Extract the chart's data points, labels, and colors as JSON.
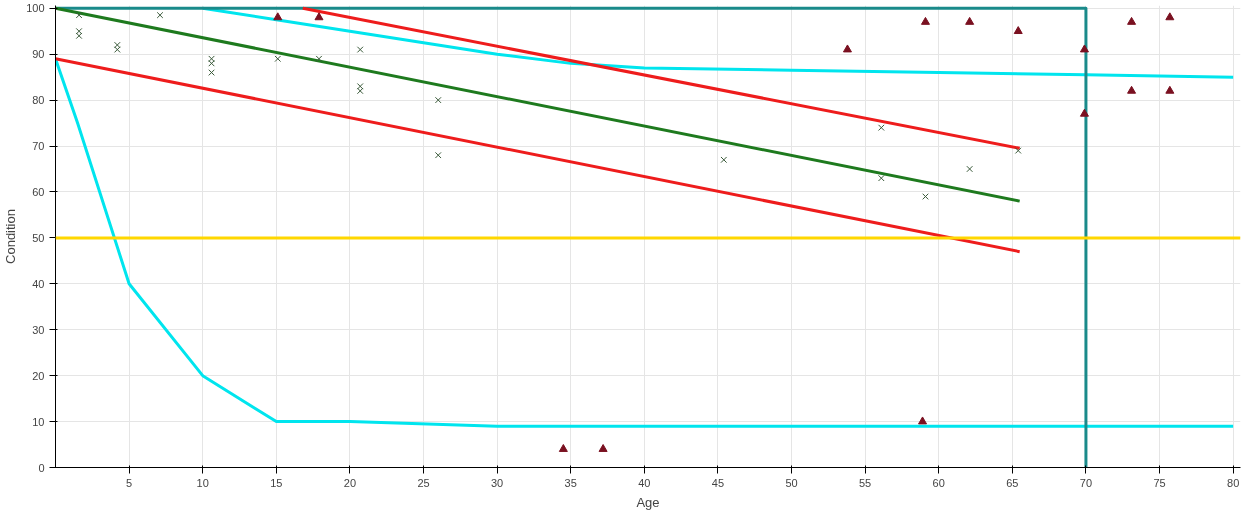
{
  "chart_data": {
    "type": "scatter",
    "xlabel": "Age",
    "ylabel": "Condition",
    "xlim": [
      0,
      80.5
    ],
    "ylim": [
      0,
      100.6
    ],
    "xticks": [
      5,
      10,
      15,
      20,
      25,
      30,
      35,
      40,
      45,
      50,
      55,
      60,
      65,
      70,
      75,
      80
    ],
    "yticks": [
      0,
      10,
      20,
      30,
      40,
      50,
      60,
      70,
      80,
      90,
      100
    ],
    "grid": true,
    "series": [
      {
        "type": "line",
        "color": "#00e5ee",
        "x": [
          0,
          1.5,
          5,
          10,
          15,
          20,
          30,
          80
        ],
        "values": [
          89,
          75,
          40,
          20,
          10,
          10,
          9,
          9
        ]
      },
      {
        "type": "line",
        "color": "#00e5ee",
        "x": [
          10,
          15,
          20,
          25,
          30,
          35,
          40,
          50,
          60,
          70,
          80
        ],
        "values": [
          100,
          97.5,
          95,
          92.5,
          90,
          88,
          87,
          86.5,
          86,
          85.5,
          85
        ]
      },
      {
        "type": "line",
        "color": "#1a8a8a",
        "x": [
          0,
          70,
          70
        ],
        "values": [
          100,
          100,
          0
        ]
      },
      {
        "type": "line",
        "color": "#ee1c1c",
        "x": [
          16.8,
          65.5
        ],
        "values": [
          100,
          69.5
        ]
      },
      {
        "type": "line",
        "color": "#ee1c1c",
        "x": [
          0,
          65.5
        ],
        "values": [
          89,
          47
        ]
      },
      {
        "type": "line",
        "color": "#1e7a1e",
        "x": [
          0,
          65.5
        ],
        "values": [
          100,
          58
        ]
      },
      {
        "marker": "cross",
        "color": "#3a5a3a",
        "x": [
          1.6,
          1.6,
          1.6,
          4.2,
          4.2,
          7.1,
          10.6,
          10.6,
          10.6,
          15.1,
          17.9,
          20.7,
          20.7,
          20.7,
          26.0,
          26.0,
          45.4,
          56.1,
          56.1,
          59.1,
          62.1,
          65.4
        ],
        "values": [
          98.5,
          95,
          94,
          92,
          91,
          98.5,
          89,
          88,
          86,
          89,
          89,
          91,
          83,
          82,
          80,
          68,
          67,
          74,
          63,
          59,
          65,
          69
        ]
      },
      {
        "marker": "triangle",
        "color": "#7a1020",
        "x": [
          15.1,
          17.9,
          34.5,
          37.2,
          53.8,
          58.9,
          59.1,
          62.1,
          65.4,
          69.9,
          69.9,
          73.1,
          73.1,
          75.7,
          75.7
        ],
        "values": [
          98,
          98,
          4,
          4,
          91,
          10,
          97,
          97,
          95,
          91,
          77,
          97,
          82,
          98,
          82
        ]
      }
    ],
    "ref_lines": [
      {
        "axis": "y",
        "value": 50,
        "color": "#ffd700"
      }
    ]
  }
}
